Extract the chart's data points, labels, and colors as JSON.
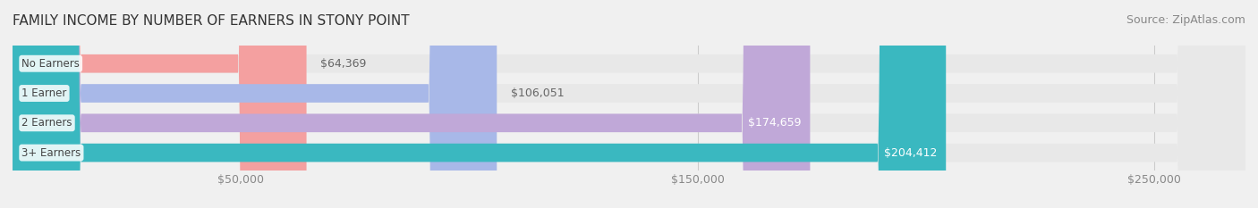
{
  "title": "FAMILY INCOME BY NUMBER OF EARNERS IN STONY POINT",
  "source": "Source: ZipAtlas.com",
  "categories": [
    "No Earners",
    "1 Earner",
    "2 Earners",
    "3+ Earners"
  ],
  "values": [
    64369,
    106051,
    174659,
    204412
  ],
  "bar_colors": [
    "#f4a0a0",
    "#a8b8e8",
    "#c0a8d8",
    "#3ab8c0"
  ],
  "label_colors": [
    "#888888",
    "#888888",
    "#ffffff",
    "#ffffff"
  ],
  "x_max": 270000,
  "x_ticks": [
    50000,
    150000,
    250000
  ],
  "x_tick_labels": [
    "$50,000",
    "$150,000",
    "$250,000"
  ],
  "background_color": "#f0f0f0",
  "bar_background_color": "#e8e8e8",
  "title_fontsize": 11,
  "source_fontsize": 9,
  "bar_label_fontsize": 9,
  "category_fontsize": 8.5,
  "tick_fontsize": 9
}
